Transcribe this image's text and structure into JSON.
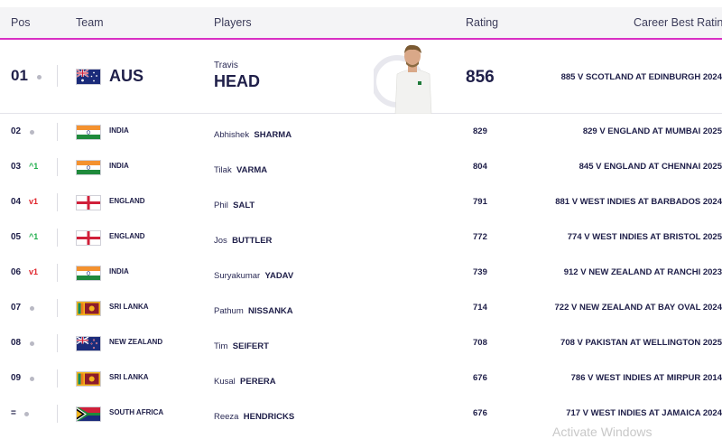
{
  "headers": {
    "pos": "Pos",
    "team": "Team",
    "players": "Players",
    "rating": "Rating",
    "best": "Career Best Rating"
  },
  "top": {
    "pos": "01",
    "team": "AUS",
    "first": "Travis",
    "last": "HEAD",
    "rating": "856",
    "best": "885 V SCOTLAND AT EDINBURGH 2024"
  },
  "rows": [
    {
      "pos": "02",
      "move": "",
      "team": "INDIA",
      "first": "Abhishek",
      "last": "SHARMA",
      "rating": "829",
      "best": "829 V ENGLAND AT MUMBAI 2025"
    },
    {
      "pos": "03",
      "move": "^1",
      "team": "INDIA",
      "first": "Tilak",
      "last": "VARMA",
      "rating": "804",
      "best": "845 V ENGLAND AT CHENNAI 2025"
    },
    {
      "pos": "04",
      "move": "v1",
      "team": "ENGLAND",
      "first": "Phil",
      "last": "SALT",
      "rating": "791",
      "best": "881 V WEST INDIES AT BARBADOS 2024"
    },
    {
      "pos": "05",
      "move": "^1",
      "team": "ENGLAND",
      "first": "Jos",
      "last": "BUTTLER",
      "rating": "772",
      "best": "774 V WEST INDIES AT BRISTOL 2025"
    },
    {
      "pos": "06",
      "move": "v1",
      "team": "INDIA",
      "first": "Suryakumar",
      "last": "YADAV",
      "rating": "739",
      "best": "912 V NEW ZEALAND AT RANCHI 2023"
    },
    {
      "pos": "07",
      "move": "",
      "team": "SRI LANKA",
      "first": "Pathum",
      "last": "NISSANKA",
      "rating": "714",
      "best": "722 V NEW ZEALAND AT BAY OVAL 2024"
    },
    {
      "pos": "08",
      "move": "",
      "team": "NEW ZEALAND",
      "first": "Tim",
      "last": "SEIFERT",
      "rating": "708",
      "best": "708 V PAKISTAN AT WELLINGTON 2025"
    },
    {
      "pos": "09",
      "move": "",
      "team": "SRI LANKA",
      "first": "Kusal",
      "last": "PERERA",
      "rating": "676",
      "best": "786 V WEST INDIES AT MIRPUR 2014"
    },
    {
      "pos": "=",
      "move": "",
      "team": "SOUTH AFRICA",
      "first": "Reeza",
      "last": "HENDRICKS",
      "rating": "676",
      "best": "717 V WEST INDIES AT JAMAICA 2024"
    }
  ],
  "watermark": "Activate Windows"
}
